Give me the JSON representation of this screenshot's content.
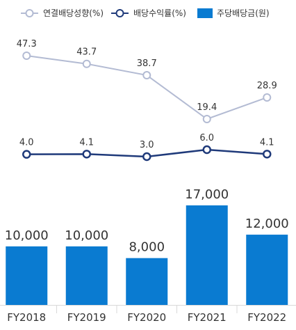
{
  "chart_data": {
    "type": "bar+line",
    "categories": [
      "FY2018",
      "FY2019",
      "FY2020",
      "FY2021",
      "FY2022"
    ],
    "legend_position": "top",
    "grid": false,
    "series": [
      {
        "name": "연결배당성향(%)",
        "type": "line",
        "color": "#b3bbd3",
        "values": [
          47.3,
          43.7,
          38.7,
          19.4,
          28.9
        ],
        "labels": [
          "47.3",
          "43.7",
          "38.7",
          "19.4",
          "28.9"
        ]
      },
      {
        "name": "배당수익률(%)",
        "type": "line",
        "color": "#1f3a7a",
        "values": [
          4.0,
          4.1,
          3.0,
          6.0,
          4.1
        ],
        "labels": [
          "4.0",
          "4.1",
          "3.0",
          "6.0",
          "4.1"
        ]
      },
      {
        "name": "주당배당금(원)",
        "type": "bar",
        "color": "#0a7bd1",
        "values": [
          10000,
          10000,
          8000,
          17000,
          12000
        ],
        "labels": [
          "10,000",
          "10,000",
          "8,000",
          "17,000",
          "12,000"
        ]
      }
    ],
    "axis_color": "#d9d9d9"
  }
}
